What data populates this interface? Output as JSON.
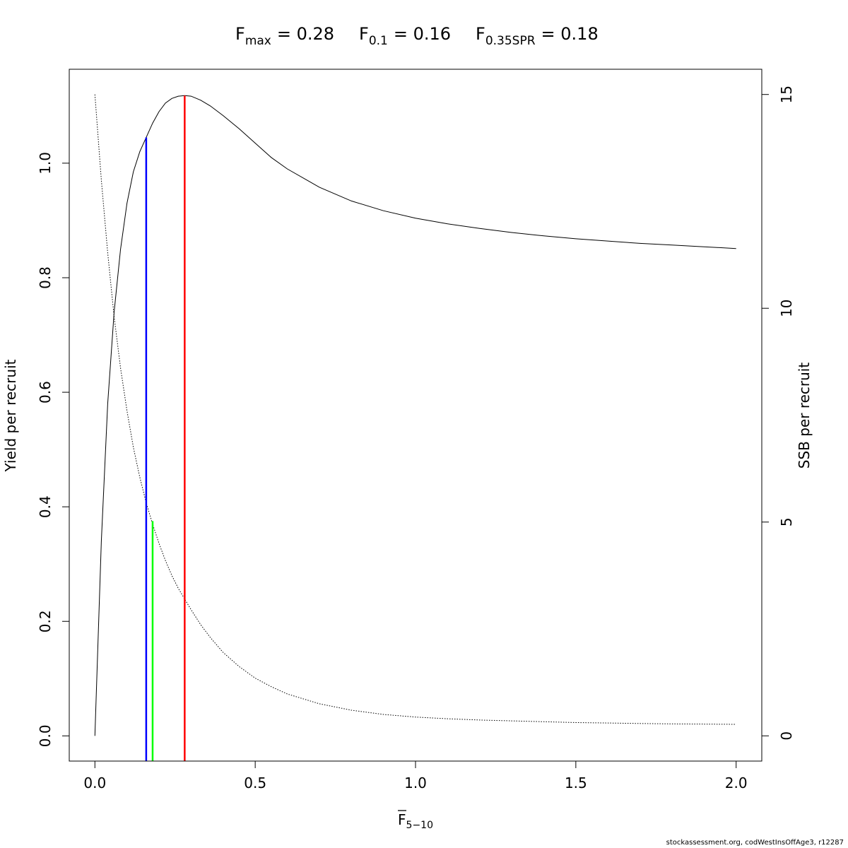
{
  "title": {
    "fmax": {
      "base": "F",
      "sub": "max",
      "value": "= 0.28"
    },
    "f01": {
      "base": "F",
      "sub": "0.1",
      "value": "= 0.16"
    },
    "f035": {
      "base": "F",
      "sub": "0.35SPR",
      "value": "= 0.18"
    }
  },
  "footer": "stockassessment.org, codWestInsOffAge3, r12287",
  "chart_data": {
    "type": "line",
    "xlabel": {
      "base": "F",
      "sub": "5−10",
      "overline": true
    },
    "ylabel": "Yield per recruit",
    "y2label": "SSB per recruit",
    "xlim": [
      -0.08,
      2.08
    ],
    "ylim": [
      -0.044,
      1.164
    ],
    "y2lim": [
      -0.59,
      15.59
    ],
    "x_ticks": [
      "0.0",
      "0.5",
      "1.0",
      "1.5",
      "2.0"
    ],
    "y_ticks": [
      "0.0",
      "0.2",
      "0.4",
      "0.6",
      "0.8",
      "1.0"
    ],
    "y2_ticks": [
      "0",
      "5",
      "10",
      "15"
    ],
    "series": [
      {
        "axis": "left",
        "style": "solid",
        "x": [
          0,
          0.02,
          0.04,
          0.06,
          0.08,
          0.1,
          0.12,
          0.14,
          0.16,
          0.18,
          0.2,
          0.22,
          0.24,
          0.26,
          0.28,
          0.3,
          0.33,
          0.36,
          0.4,
          0.45,
          0.5,
          0.55,
          0.6,
          0.7,
          0.8,
          0.9,
          1.0,
          1.1,
          1.2,
          1.3,
          1.4,
          1.5,
          1.6,
          1.7,
          1.8,
          1.9,
          2.0
        ],
        "y": [
          0.0,
          0.34,
          0.58,
          0.74,
          0.85,
          0.93,
          0.985,
          1.02,
          1.045,
          1.07,
          1.09,
          1.105,
          1.113,
          1.117,
          1.118,
          1.117,
          1.11,
          1.1,
          1.083,
          1.06,
          1.035,
          1.01,
          0.99,
          0.958,
          0.934,
          0.917,
          0.904,
          0.894,
          0.886,
          0.879,
          0.873,
          0.868,
          0.864,
          0.86,
          0.857,
          0.854,
          0.851
        ]
      },
      {
        "axis": "right",
        "style": "dotted",
        "x": [
          0,
          0.02,
          0.04,
          0.06,
          0.08,
          0.1,
          0.12,
          0.14,
          0.16,
          0.18,
          0.2,
          0.22,
          0.24,
          0.26,
          0.28,
          0.3,
          0.33,
          0.36,
          0.4,
          0.45,
          0.5,
          0.55,
          0.6,
          0.7,
          0.8,
          0.9,
          1.0,
          1.1,
          1.2,
          1.3,
          1.4,
          1.5,
          1.6,
          1.7,
          1.8,
          1.9,
          2.0
        ],
        "y": [
          15.0,
          13.0,
          11.3,
          9.8,
          8.6,
          7.6,
          6.75,
          6.05,
          5.45,
          4.95,
          4.5,
          4.1,
          3.75,
          3.45,
          3.2,
          2.95,
          2.6,
          2.3,
          1.95,
          1.62,
          1.35,
          1.15,
          0.98,
          0.75,
          0.6,
          0.5,
          0.44,
          0.4,
          0.37,
          0.35,
          0.33,
          0.31,
          0.3,
          0.29,
          0.28,
          0.275,
          0.27
        ]
      }
    ],
    "reference_lines": [
      {
        "name": "F0.1",
        "x": 0.16,
        "y_top": 1.045,
        "color": "#0000ff"
      },
      {
        "name": "F0.35SPR",
        "x": 0.18,
        "y_top": 0.375,
        "color": "#00ff00"
      },
      {
        "name": "Fmax",
        "x": 0.28,
        "y_top": 1.118,
        "color": "#ff0000"
      }
    ]
  }
}
